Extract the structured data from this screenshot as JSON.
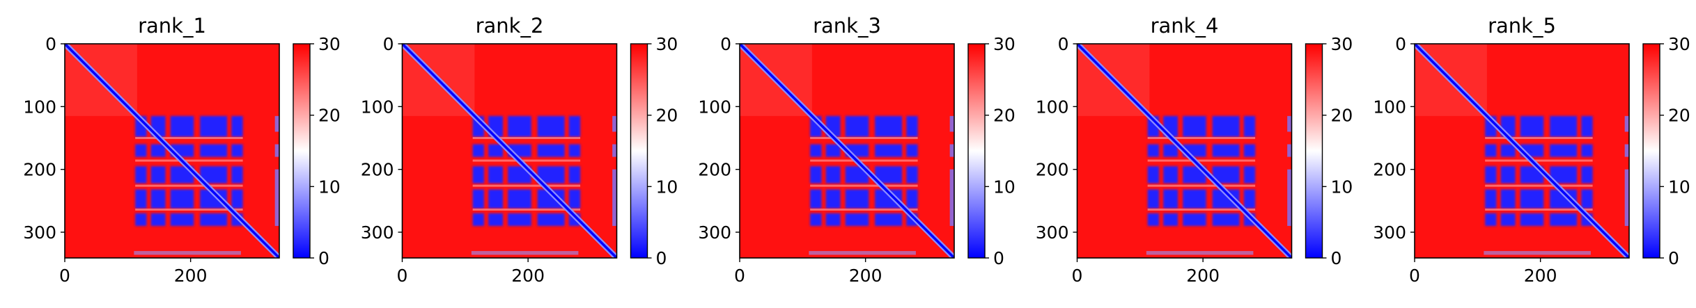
{
  "chart_data": [
    {
      "type": "heatmap",
      "title": "rank_1",
      "xlim": [
        0,
        341
      ],
      "ylim": [
        341,
        0
      ],
      "x_ticks": [
        0,
        200
      ],
      "y_ticks": [
        0,
        100,
        200,
        300
      ],
      "colorbar": {
        "min": 0,
        "max": 30,
        "ticks": [
          0,
          10,
          20,
          30
        ],
        "colormap": "bwr"
      }
    },
    {
      "type": "heatmap",
      "title": "rank_2",
      "xlim": [
        0,
        341
      ],
      "ylim": [
        341,
        0
      ],
      "x_ticks": [
        0,
        200
      ],
      "y_ticks": [
        0,
        100,
        200,
        300
      ],
      "colorbar": {
        "min": 0,
        "max": 30,
        "ticks": [
          0,
          10,
          20,
          30
        ],
        "colormap": "bwr"
      }
    },
    {
      "type": "heatmap",
      "title": "rank_3",
      "xlim": [
        0,
        341
      ],
      "ylim": [
        341,
        0
      ],
      "x_ticks": [
        0,
        200
      ],
      "y_ticks": [
        0,
        100,
        200,
        300
      ],
      "colorbar": {
        "min": 0,
        "max": 30,
        "ticks": [
          0,
          10,
          20,
          30
        ],
        "colormap": "bwr"
      }
    },
    {
      "type": "heatmap",
      "title": "rank_4",
      "xlim": [
        0,
        341
      ],
      "ylim": [
        341,
        0
      ],
      "x_ticks": [
        0,
        200
      ],
      "y_ticks": [
        0,
        100,
        200,
        300
      ],
      "colorbar": {
        "min": 0,
        "max": 30,
        "ticks": [
          0,
          10,
          20,
          30
        ],
        "colormap": "bwr"
      }
    },
    {
      "type": "heatmap",
      "title": "rank_5",
      "xlim": [
        0,
        341
      ],
      "ylim": [
        341,
        0
      ],
      "x_ticks": [
        0,
        200
      ],
      "y_ticks": [
        0,
        100,
        200,
        300
      ],
      "colorbar": {
        "min": 0,
        "max": 30,
        "ticks": [
          0,
          10,
          20,
          30
        ],
        "colormap": "bwr"
      }
    }
  ],
  "colors": {
    "low": "#0000ff",
    "mid": "#ffffff",
    "high": "#ff0000"
  }
}
